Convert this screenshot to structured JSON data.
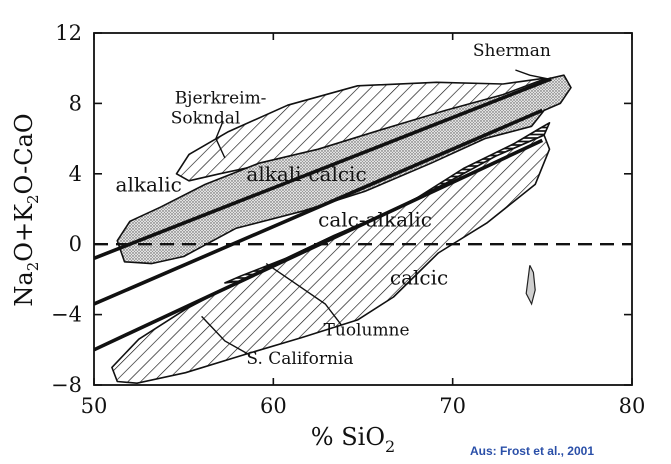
{
  "chart_data": {
    "type": "scatter",
    "xlabel_prefix": "% SiO",
    "xlabel_sub": "2",
    "ylabel": "Na2O+K2O-CaO",
    "xlim": [
      50,
      80
    ],
    "ylim": [
      -8,
      12
    ],
    "x_ticks": [
      "50",
      "60",
      "70",
      "80"
    ],
    "y_ticks": [
      "-8",
      "-4",
      "0",
      "4",
      "8",
      "12"
    ],
    "boundaries": [
      {
        "name": "alkalic / alkali-calcic",
        "points": [
          [
            50,
            -0.8
          ],
          [
            75.5,
            9.4
          ]
        ]
      },
      {
        "name": "alkali-calcic / calc-alkalic",
        "points": [
          [
            50,
            -3.4
          ],
          [
            75,
            7.6
          ]
        ]
      },
      {
        "name": "calc-alkalic / calcic",
        "points": [
          [
            50,
            -6.0
          ],
          [
            75,
            5.9
          ]
        ]
      },
      {
        "name": "zero line",
        "points": [
          [
            50,
            0
          ],
          [
            80,
            0
          ]
        ],
        "dashed": true
      }
    ],
    "series_labels": [
      {
        "text": "alkalic",
        "x": 51.2,
        "y": 3.0
      },
      {
        "text": "alkali-calcic",
        "x": 58.5,
        "y": 3.6
      },
      {
        "text": "calc-alkalic",
        "x": 62.5,
        "y": 1.0
      },
      {
        "text": "calcic",
        "x": 66.5,
        "y": -2.3
      }
    ],
    "fields": [
      {
        "name": "Bjerkreim-Sokndal",
        "label_lines": [
          "Bjerkreim-",
          "Sokndal"
        ],
        "fill": "hatch",
        "label_x": 54.5,
        "label_y": 8.0,
        "polygon": [
          [
            55.3,
            3.6
          ],
          [
            54.6,
            4.0
          ],
          [
            55.3,
            5.1
          ],
          [
            57.5,
            6.4
          ],
          [
            60.8,
            7.9
          ],
          [
            64.7,
            9.0
          ],
          [
            69.1,
            9.2
          ],
          [
            72.8,
            9.1
          ],
          [
            74.9,
            9.4
          ],
          [
            75.5,
            9.4
          ],
          [
            73.7,
            8.2
          ],
          [
            70.6,
            6.7
          ],
          [
            67.5,
            5.8
          ],
          [
            63.9,
            5.3
          ],
          [
            60.2,
            4.7
          ],
          [
            57.0,
            4.0
          ]
        ]
      },
      {
        "name": "Sherman",
        "label_lines": [
          "Sherman"
        ],
        "fill": "stipple",
        "label_x": 73.3,
        "label_y": 10.7,
        "polygon": [
          [
            51.7,
            -1.0
          ],
          [
            51.3,
            0.2
          ],
          [
            52.0,
            1.3
          ],
          [
            53.7,
            2.1
          ],
          [
            56.2,
            3.4
          ],
          [
            59.2,
            4.6
          ],
          [
            62.5,
            5.4
          ],
          [
            66.0,
            6.5
          ],
          [
            69.6,
            7.6
          ],
          [
            72.8,
            8.5
          ],
          [
            74.9,
            9.3
          ],
          [
            76.2,
            9.6
          ],
          [
            76.6,
            8.9
          ],
          [
            76.0,
            8.0
          ],
          [
            75.1,
            7.6
          ],
          [
            74.4,
            6.7
          ],
          [
            71.8,
            6.0
          ],
          [
            68.8,
            4.6
          ],
          [
            65.1,
            3.0
          ],
          [
            61.7,
            1.9
          ],
          [
            57.9,
            0.9
          ],
          [
            55.0,
            -0.7
          ],
          [
            53.2,
            -1.1
          ]
        ]
      },
      {
        "name": "Tuolumne",
        "label_lines": [
          "Tuolumne"
        ],
        "fill": "dense-hatch",
        "label_x": 62.8,
        "label_y": -5.2,
        "polygon": [
          [
            57.3,
            -2.2
          ],
          [
            58.2,
            -1.8
          ],
          [
            61.2,
            -0.6
          ],
          [
            64.3,
            0.9
          ],
          [
            67.5,
            2.3
          ],
          [
            70.6,
            4.3
          ],
          [
            73.4,
            5.7
          ],
          [
            74.9,
            6.6
          ],
          [
            75.4,
            6.9
          ],
          [
            75.1,
            6.2
          ],
          [
            72.4,
            5.0
          ],
          [
            69.5,
            3.4
          ],
          [
            66.4,
            1.8
          ],
          [
            63.4,
            0.5
          ],
          [
            60.7,
            -0.8
          ],
          [
            58.1,
            -2.1
          ]
        ]
      },
      {
        "name": "S. California",
        "label_lines": [
          "S. California"
        ],
        "fill": "hatch",
        "label_x": 58.5,
        "label_y": -6.8,
        "polygon": [
          [
            51.3,
            -7.8
          ],
          [
            52.4,
            -7.9
          ],
          [
            55.1,
            -7.3
          ],
          [
            58.3,
            -6.3
          ],
          [
            61.6,
            -5.3
          ],
          [
            64.7,
            -4.3
          ],
          [
            66.7,
            -3.0
          ],
          [
            69.2,
            -0.5
          ],
          [
            71.9,
            1.2
          ],
          [
            74.6,
            3.4
          ],
          [
            75.4,
            5.4
          ],
          [
            75.1,
            6.2
          ],
          [
            72.4,
            5.0
          ],
          [
            69.5,
            3.4
          ],
          [
            66.4,
            1.8
          ],
          [
            63.4,
            0.5
          ],
          [
            60.7,
            -0.8
          ],
          [
            58.1,
            -2.1
          ],
          [
            55.1,
            -3.7
          ],
          [
            52.5,
            -5.4
          ],
          [
            51.0,
            -7.0
          ]
        ]
      }
    ],
    "leaders": [
      {
        "name": "Bjerkreim-Sokndal",
        "points": [
          [
            57.2,
            7.0
          ],
          [
            56.8,
            6.0
          ],
          [
            57.3,
            4.9
          ]
        ]
      },
      {
        "name": "Sherman",
        "points": [
          [
            73.5,
            9.9
          ],
          [
            74.3,
            9.6
          ],
          [
            75.3,
            9.4
          ]
        ]
      },
      {
        "name": "Tuolumne",
        "points": [
          [
            63.8,
            -4.6
          ],
          [
            62.9,
            -3.4
          ],
          [
            60.9,
            -2.0
          ],
          [
            59.6,
            -1.1
          ]
        ]
      },
      {
        "name": "S. California",
        "points": [
          [
            58.7,
            -6.3
          ],
          [
            57.3,
            -5.5
          ],
          [
            56.0,
            -4.1
          ]
        ]
      }
    ],
    "extra_marks": [
      {
        "name": "small-field-mark",
        "points": [
          [
            74.3,
            -1.2
          ],
          [
            74.2,
            -2.0
          ],
          [
            74.1,
            -2.8
          ],
          [
            74.4,
            -3.4
          ],
          [
            74.6,
            -2.6
          ],
          [
            74.5,
            -1.6
          ],
          [
            74.3,
            -1.2
          ]
        ]
      }
    ],
    "source": "Aus: Frost et al., 2001"
  }
}
